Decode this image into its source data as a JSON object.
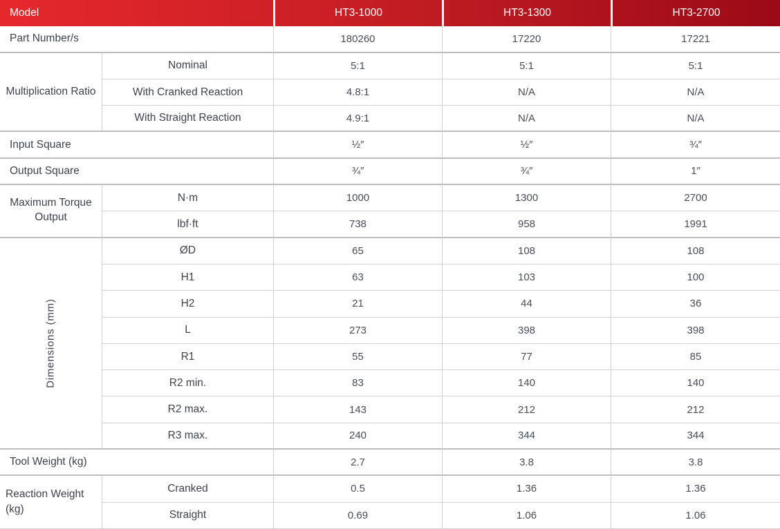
{
  "header": {
    "model_label": "Model",
    "columns": [
      "HT3-1000",
      "HT3-1300",
      "HT3-2700"
    ]
  },
  "colors": {
    "header_gradient_start": "#e6282c",
    "header_gradient_end": "#9c0a17",
    "header_text": "#ffffff",
    "body_text": "#474c58",
    "grid_line": "#d0d0d0"
  },
  "rows": {
    "part_number": {
      "label": "Part Number/s",
      "values": [
        "180260",
        "17220",
        "17221"
      ]
    },
    "multiplication_ratio": {
      "label": "Multiplication Ratio",
      "sub": [
        {
          "label": "Nominal",
          "values": [
            "5:1",
            "5:1",
            "5:1"
          ]
        },
        {
          "label": "With Cranked Reaction",
          "values": [
            "4.8:1",
            "N/A",
            "N/A"
          ]
        },
        {
          "label": "With Straight Reaction",
          "values": [
            "4.9:1",
            "N/A",
            "N/A"
          ]
        }
      ]
    },
    "input_square": {
      "label": "Input Square",
      "values": [
        "½″",
        "½″",
        "¾″"
      ]
    },
    "output_square": {
      "label": "Output Square",
      "values": [
        "¾″",
        "¾″",
        "1″"
      ]
    },
    "max_torque": {
      "label": "Maximum Torque Output",
      "sub": [
        {
          "label": "N·m",
          "values": [
            "1000",
            "1300",
            "2700"
          ]
        },
        {
          "label": "lbf·ft",
          "values": [
            "738",
            "958",
            "1991"
          ]
        }
      ]
    },
    "dimensions": {
      "label": "Dimensions (mm)",
      "sub": [
        {
          "label": "ØD",
          "values": [
            "65",
            "108",
            "108"
          ]
        },
        {
          "label": "H1",
          "values": [
            "63",
            "103",
            "100"
          ]
        },
        {
          "label": "H2",
          "values": [
            "21",
            "44",
            "36"
          ]
        },
        {
          "label": "L",
          "values": [
            "273",
            "398",
            "398"
          ]
        },
        {
          "label": "R1",
          "values": [
            "55",
            "77",
            "85"
          ]
        },
        {
          "label": "R2 min.",
          "values": [
            "83",
            "140",
            "140"
          ]
        },
        {
          "label": "R2 max.",
          "values": [
            "143",
            "212",
            "212"
          ]
        },
        {
          "label": "R3 max.",
          "values": [
            "240",
            "344",
            "344"
          ]
        }
      ]
    },
    "tool_weight": {
      "label": "Tool Weight (kg)",
      "values": [
        "2.7",
        "3.8",
        "3.8"
      ]
    },
    "reaction_weight": {
      "label": "Reaction Weight (kg)",
      "sub": [
        {
          "label": "Cranked",
          "values": [
            "0.5",
            "1.36",
            "1.36"
          ]
        },
        {
          "label": "Straight",
          "values": [
            "0.69",
            "1.06",
            "1.06"
          ]
        }
      ]
    }
  }
}
